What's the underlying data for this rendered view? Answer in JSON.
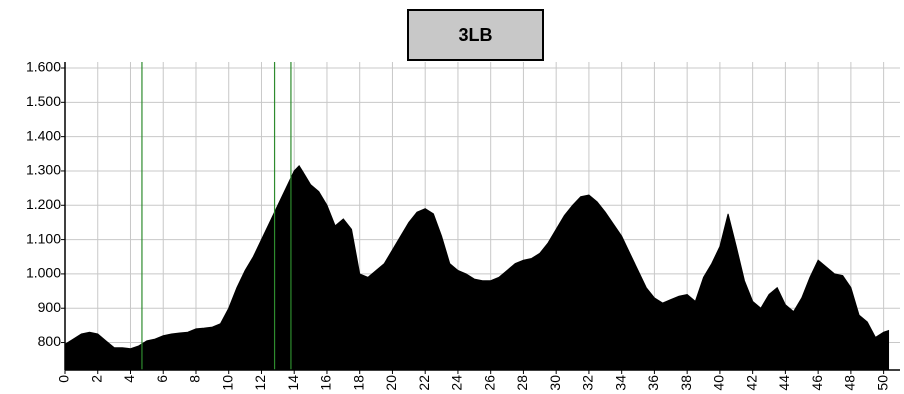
{
  "chart_data": {
    "type": "area",
    "title": "3LB",
    "x": [
      0,
      0.5,
      1,
      1.5,
      2,
      2.5,
      3,
      3.5,
      4,
      4.5,
      5,
      5.5,
      6,
      6.5,
      7,
      7.5,
      8,
      8.5,
      9,
      9.5,
      10,
      10.5,
      11,
      11.5,
      12,
      12.5,
      13,
      13.5,
      14,
      14.3,
      14.5,
      15,
      15.5,
      16,
      16.5,
      17,
      17.5,
      18,
      18.5,
      19,
      19.5,
      20,
      20.5,
      21,
      21.5,
      22,
      22.5,
      23,
      23.5,
      24,
      24.5,
      25,
      25.5,
      26,
      26.5,
      27,
      27.5,
      28,
      28.5,
      29,
      29.5,
      30,
      30.5,
      31,
      31.5,
      32,
      32.5,
      33,
      33.5,
      34,
      34.5,
      35,
      35.5,
      36,
      36.5,
      37,
      37.5,
      38,
      38.5,
      39,
      39.5,
      40,
      40.5,
      41,
      41.5,
      42,
      42.5,
      43,
      43.5,
      44,
      44.5,
      45,
      45.5,
      46,
      46.5,
      47,
      47.5,
      48,
      48.5,
      49,
      49.5,
      50,
      50.3
    ],
    "values": [
      795,
      810,
      825,
      830,
      825,
      805,
      785,
      785,
      782,
      790,
      805,
      810,
      820,
      825,
      828,
      830,
      840,
      842,
      845,
      855,
      900,
      960,
      1010,
      1050,
      1100,
      1150,
      1200,
      1250,
      1300,
      1315,
      1300,
      1260,
      1240,
      1200,
      1140,
      1160,
      1130,
      1000,
      990,
      1010,
      1030,
      1070,
      1110,
      1150,
      1180,
      1190,
      1175,
      1110,
      1030,
      1010,
      1000,
      985,
      980,
      980,
      990,
      1010,
      1030,
      1040,
      1045,
      1060,
      1090,
      1130,
      1170,
      1200,
      1225,
      1230,
      1210,
      1180,
      1145,
      1110,
      1060,
      1010,
      960,
      930,
      915,
      925,
      935,
      940,
      920,
      990,
      1030,
      1080,
      1175,
      1080,
      980,
      920,
      900,
      940,
      960,
      910,
      890,
      930,
      990,
      1040,
      1020,
      1000,
      995,
      960,
      880,
      860,
      815,
      830,
      835
    ],
    "color": "#000000",
    "markers": [
      4.7,
      12.8,
      13.8
    ],
    "marker_color": "#2e8b2e",
    "xlim": [
      0,
      51
    ],
    "ylim": [
      720,
      1600
    ],
    "xticks": [
      0,
      2,
      4,
      6,
      8,
      10,
      12,
      14,
      16,
      18,
      20,
      22,
      24,
      26,
      28,
      30,
      32,
      34,
      36,
      38,
      40,
      42,
      44,
      46,
      48,
      50
    ],
    "yticks": [
      {
        "value": 1600,
        "label": "1.600"
      },
      {
        "value": 1500,
        "label": "1.500"
      },
      {
        "value": 1400,
        "label": "1.400"
      },
      {
        "value": 1300,
        "label": "1.300"
      },
      {
        "value": 1200,
        "label": "1.200"
      },
      {
        "value": 1100,
        "label": "1.100"
      },
      {
        "value": 1000,
        "label": "1.000"
      },
      900,
      800
    ],
    "grid": true
  }
}
